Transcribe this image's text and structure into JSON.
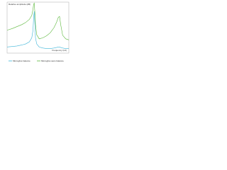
{
  "chart_data": {
    "type": "line",
    "y_label": "Relative amplitude (dB)",
    "x_label": "Frequency (Hz)",
    "xlim": [
      0,
      100
    ],
    "ylim": [
      0,
      100
    ],
    "x": [
      0,
      8,
      16,
      24,
      30,
      36,
      40,
      42,
      43,
      44,
      45,
      46,
      48,
      52,
      58,
      64,
      70,
      76,
      80,
      83,
      85,
      87,
      90,
      95,
      100
    ],
    "series": [
      {
        "name": "Microgliss balance",
        "color": "#3cb4d8",
        "values": [
          12,
          13,
          14,
          16,
          18,
          22,
          30,
          45,
          70,
          82,
          60,
          30,
          18,
          12,
          10,
          9,
          9,
          10,
          11,
          12,
          12,
          11,
          10,
          9,
          9
        ]
      },
      {
        "name": "Microgliss sans balance",
        "color": "#5cb83c",
        "values": [
          45,
          48,
          52,
          56,
          60,
          66,
          74,
          86,
          96,
          98,
          80,
          56,
          36,
          28,
          30,
          34,
          40,
          50,
          60,
          70,
          72,
          55,
          35,
          28,
          26
        ]
      }
    ]
  }
}
